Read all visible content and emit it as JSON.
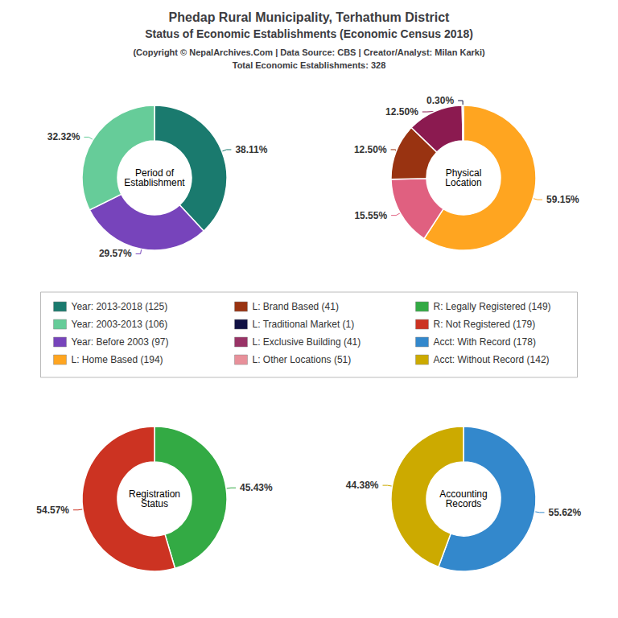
{
  "title": "Phedap Rural Municipality, Terhathum District",
  "subtitle": "Status of Economic Establishments (Economic Census 2018)",
  "annotations": [
    "(Copyright © NepalArchives.Com | Data Source: CBS | Creator/Analyst: Milan Karki)",
    "Total Economic Establishments: 328"
  ],
  "legend_entries": [
    {
      "name": "Year: 2013-2018 (125)",
      "color": "#1a7a6e"
    },
    {
      "name": "Year: 2003-2013 (106)",
      "color": "#66cc99"
    },
    {
      "name": "Year: Before 2003 (97)",
      "color": "#7744bb"
    },
    {
      "name": "L: Home Based (194)",
      "color": "#FFA520"
    },
    {
      "name": "L: Brand Based (41)",
      "color": "#993311"
    },
    {
      "name": "L: Traditional Market (1)",
      "color": "#111144"
    },
    {
      "name": "L: Exclusive Building (41)",
      "color": "#993366"
    },
    {
      "name": "L: Other Locations (51)",
      "color": "#E8909A"
    },
    {
      "name": "R: Legally Registered (149)",
      "color": "#33aa44"
    },
    {
      "name": "R: Not Registered (179)",
      "color": "#cc3322"
    },
    {
      "name": "Acct: With Record (178)",
      "color": "#3388cc"
    },
    {
      "name": "Acct: Without Record (142)",
      "color": "#ccaa00"
    }
  ],
  "chart_data": [
    {
      "type": "pie",
      "title": "Period of\nEstablishment",
      "values": [
        38.11,
        29.57,
        32.32
      ],
      "value_labels": [
        "38.11%",
        "29.57%",
        "32.32%"
      ],
      "colors": [
        "#1a7a6e",
        "#7744bb",
        "#66cc99"
      ],
      "data_labels": true
    },
    {
      "type": "pie",
      "title": "Physical\nLocation",
      "values": [
        59.15,
        15.55,
        12.5,
        12.5,
        0.3
      ],
      "value_labels": [
        "59.15%",
        "15.55%",
        "12.50%",
        "12.50%",
        "0.30%"
      ],
      "colors": [
        "#FFA520",
        "#E06080",
        "#993311",
        "#8B1A50",
        "#111144"
      ],
      "data_labels": true
    },
    {
      "type": "pie",
      "title": "Registration\nStatus",
      "values": [
        45.43,
        54.57
      ],
      "value_labels": [
        "45.43%",
        "54.57%"
      ],
      "colors": [
        "#33aa44",
        "#cc3322"
      ],
      "data_labels": true
    },
    {
      "type": "pie",
      "title": "Accounting\nRecords",
      "values": [
        55.62,
        44.38
      ],
      "value_labels": [
        "55.62%",
        "44.38%"
      ],
      "colors": [
        "#3388cc",
        "#ccaa00"
      ],
      "data_labels": true
    }
  ]
}
